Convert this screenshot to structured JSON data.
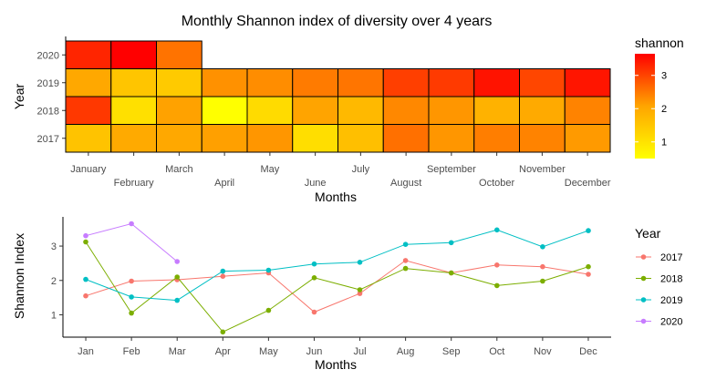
{
  "chart_data": [
    {
      "type": "heatmap",
      "title": "Monthly Shannon index of diversity over 4 years",
      "xlabel": "Months",
      "ylabel": "Year",
      "x_categories": [
        "January",
        "February",
        "March",
        "April",
        "May",
        "June",
        "July",
        "August",
        "September",
        "October",
        "November",
        "December"
      ],
      "y_categories": [
        "2017",
        "2018",
        "2019",
        "2020"
      ],
      "legend": {
        "title": "shannon",
        "ticks": [
          1,
          2,
          3
        ],
        "range": [
          0.5,
          3.65
        ],
        "position": "right"
      },
      "colors": {
        "low": "#FFFF00",
        "mid": "#FFA500",
        "high": "#FF0000"
      },
      "cells": {
        "2017": [
          1.55,
          1.98,
          2.02,
          2.12,
          2.22,
          1.08,
          1.62,
          2.58,
          2.22,
          2.45,
          2.4,
          2.18
        ],
        "2018": [
          3.12,
          1.05,
          2.1,
          0.5,
          1.13,
          2.08,
          1.73,
          2.35,
          2.22,
          1.85,
          1.98,
          2.4
        ],
        "2019": [
          2.03,
          1.52,
          1.42,
          2.27,
          2.3,
          2.48,
          2.53,
          3.05,
          3.1,
          3.47,
          2.98,
          3.45
        ],
        "2020": [
          3.3,
          3.65,
          2.55,
          null,
          null,
          null,
          null,
          null,
          null,
          null,
          null,
          null
        ]
      }
    },
    {
      "type": "line",
      "xlabel": "Months",
      "ylabel": "Shannon Index",
      "categories": [
        "Jan",
        "Feb",
        "Mar",
        "Apr",
        "May",
        "Jun",
        "Jul",
        "Aug",
        "Sep",
        "Oct",
        "Nov",
        "Dec"
      ],
      "yticks": [
        1,
        2,
        3
      ],
      "ylim": [
        0.35,
        3.85
      ],
      "legend": {
        "title": "Year",
        "position": "right"
      },
      "series": [
        {
          "name": "2017",
          "color": "#F8766D",
          "values": [
            1.55,
            1.98,
            2.02,
            2.12,
            2.22,
            1.08,
            1.62,
            2.58,
            2.22,
            2.45,
            2.4,
            2.18
          ]
        },
        {
          "name": "2018",
          "color": "#7CAE00",
          "values": [
            3.12,
            1.05,
            2.1,
            0.5,
            1.13,
            2.08,
            1.73,
            2.35,
            2.22,
            1.85,
            1.98,
            2.4
          ]
        },
        {
          "name": "2019",
          "color": "#00BFC4",
          "values": [
            2.03,
            1.52,
            1.42,
            2.27,
            2.3,
            2.48,
            2.53,
            3.05,
            3.1,
            3.47,
            2.98,
            3.45
          ]
        },
        {
          "name": "2020",
          "color": "#C77CFF",
          "values": [
            3.3,
            3.65,
            2.55,
            null,
            null,
            null,
            null,
            null,
            null,
            null,
            null,
            null
          ]
        }
      ]
    }
  ]
}
